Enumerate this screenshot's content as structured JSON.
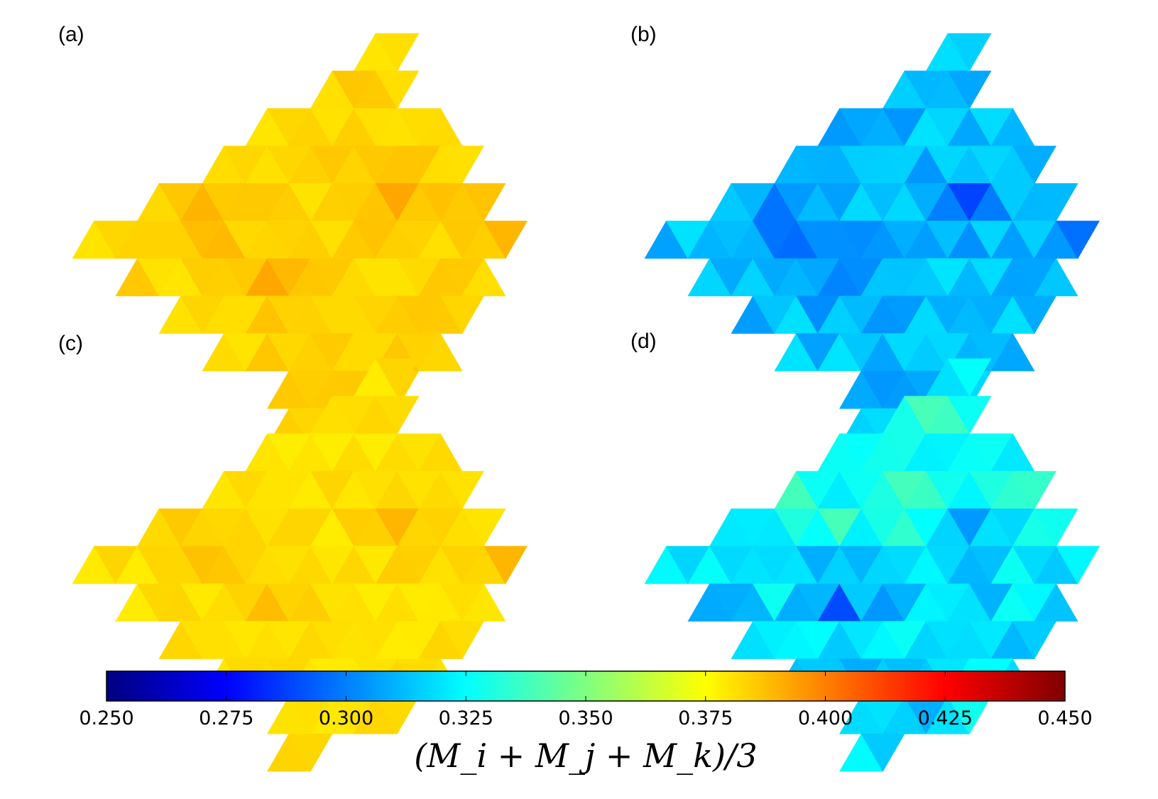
{
  "chart_data": {
    "type": "heatmap",
    "description_kind": "triangular-lattice colour maps",
    "panels": [
      {
        "label": "(a)",
        "mean_value": 0.383,
        "spread": 0.006,
        "pattern": "dark-hexagons"
      },
      {
        "label": "(b)",
        "mean_value": 0.312,
        "spread": 0.016,
        "pattern": "dark-hexagons"
      },
      {
        "label": "(c)",
        "mean_value": 0.381,
        "spread": 0.005,
        "pattern": "dark-hexagons"
      },
      {
        "label": "(d)",
        "mean_value": 0.318,
        "spread": 0.02,
        "pattern": "green-band"
      }
    ],
    "colorbar": {
      "min": 0.25,
      "max": 0.45,
      "ticks": [
        "0.250",
        "0.275",
        "0.300",
        "0.325",
        "0.350",
        "0.375",
        "0.400",
        "0.425",
        "0.450"
      ],
      "colormap": "jet",
      "label": "(M_i + M_j + M_k)/3"
    }
  }
}
